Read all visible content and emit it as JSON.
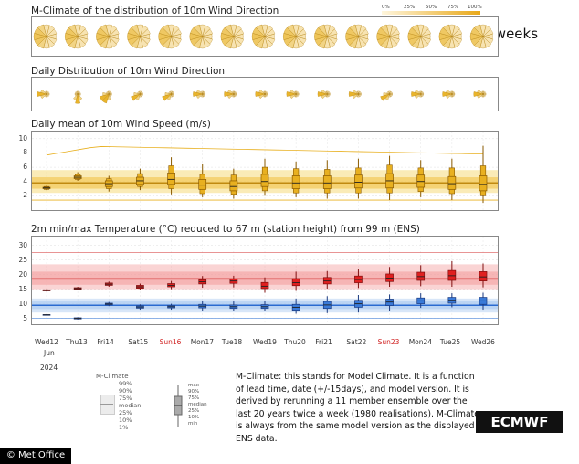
{
  "header": {
    "next_label": "Next two weeks"
  },
  "legend_scale": {
    "ticks": [
      "0%",
      "25%",
      "50%",
      "75%",
      "100%"
    ]
  },
  "panels": {
    "mclim_dir_title": "M-Climate of the distribution of 10m Wind Direction",
    "daily_dir_title": "Daily Distribution of 10m Wind Direction",
    "wind_speed_title": "Daily mean of 10m Wind Speed (m/s)",
    "temp_title": "2m min/max Temperature (°C) reduced to 67 m (station height) from 99 m (ENS)"
  },
  "x_axis": {
    "days": [
      "Wed12",
      "Thu13",
      "Fri14",
      "Sat15",
      "Sun16",
      "Mon17",
      "Tue18",
      "Wed19",
      "Thu20",
      "Fri21",
      "Sat22",
      "Sun23",
      "Mon24",
      "Tue25",
      "Wed26"
    ],
    "weekend_days": [
      "Sun16",
      "Sun23"
    ],
    "month": "Jun",
    "year": "2024"
  },
  "legend_left": {
    "title": "M-Climate",
    "items": [
      "99%",
      "90%",
      "75%",
      "median",
      "25%",
      "10%",
      "1%"
    ]
  },
  "legend_right": {
    "items": [
      "max",
      "90%",
      "75%",
      "median",
      "25%",
      "10%",
      "min"
    ]
  },
  "description": "M-Climate: this stands for Model Climate. It is a function of lead time, date (+/-15days), and model version. It is derived by rerunning a 11 member ensemble over the last 20 years twice a week (1980 realisations). M-Climate is always from the same model version as the displayed ENS data.",
  "branding": {
    "ecmwf": "ECMWF",
    "metoffice": "© Met Office"
  },
  "colors": {
    "wind": "#e8b020",
    "wind_dark": "#8a5a00",
    "tmax": "#e02020",
    "tmin": "#3a7ad8",
    "tmax_band": "#f4a0a0",
    "tmin_band": "#a8c8f0"
  },
  "chart_data": [
    {
      "type": "box",
      "title": "Daily mean of 10m Wind Speed (m/s)",
      "ylim": [
        0,
        11
      ],
      "yticks": [
        2,
        4,
        6,
        8,
        10
      ],
      "categories": [
        "Wed12",
        "Thu13",
        "Fri14",
        "Sat15",
        "Sun16",
        "Mon17",
        "Tue18",
        "Wed19",
        "Thu20",
        "Fri21",
        "Sat22",
        "Sun23",
        "Mon24",
        "Tue25",
        "Wed26"
      ],
      "mclimate": {
        "p99": 8.0,
        "p90": 5.6,
        "p75": 4.6,
        "median": 3.8,
        "p25": 3.0,
        "p10": 2.4,
        "p1": 1.4
      },
      "series": [
        {
          "min": 2.8,
          "p10": 2.9,
          "p25": 3.0,
          "median": 3.1,
          "p75": 3.2,
          "p90": 3.3,
          "max": 3.4
        },
        {
          "min": 4.1,
          "p10": 4.3,
          "p25": 4.4,
          "median": 4.6,
          "p75": 4.8,
          "p90": 5.0,
          "max": 5.3
        },
        {
          "min": 2.6,
          "p10": 3.0,
          "p25": 3.3,
          "median": 3.7,
          "p75": 4.1,
          "p90": 4.4,
          "max": 4.8
        },
        {
          "min": 2.8,
          "p10": 3.3,
          "p25": 3.6,
          "median": 4.1,
          "p75": 4.6,
          "p90": 5.1,
          "max": 5.8
        },
        {
          "min": 2.2,
          "p10": 3.0,
          "p25": 3.6,
          "median": 4.3,
          "p75": 5.2,
          "p90": 6.2,
          "max": 7.4
        },
        {
          "min": 1.8,
          "p10": 2.3,
          "p25": 2.9,
          "median": 3.5,
          "p75": 4.3,
          "p90": 5.0,
          "max": 6.4
        },
        {
          "min": 1.6,
          "p10": 2.2,
          "p25": 2.7,
          "median": 3.3,
          "p75": 4.1,
          "p90": 4.9,
          "max": 5.8
        },
        {
          "min": 2.0,
          "p10": 2.7,
          "p25": 3.3,
          "median": 4.0,
          "p75": 5.0,
          "p90": 6.0,
          "max": 7.2
        },
        {
          "min": 1.8,
          "p10": 2.4,
          "p25": 3.0,
          "median": 3.8,
          "p75": 4.8,
          "p90": 5.8,
          "max": 6.8
        },
        {
          "min": 1.6,
          "p10": 2.4,
          "p25": 3.0,
          "median": 3.8,
          "p75": 4.8,
          "p90": 5.7,
          "max": 7.0
        },
        {
          "min": 1.6,
          "p10": 2.4,
          "p25": 3.1,
          "median": 3.9,
          "p75": 4.9,
          "p90": 5.9,
          "max": 7.2
        },
        {
          "min": 1.4,
          "p10": 2.4,
          "p25": 3.1,
          "median": 4.1,
          "p75": 5.1,
          "p90": 6.3,
          "max": 7.6
        },
        {
          "min": 1.8,
          "p10": 2.6,
          "p25": 3.2,
          "median": 4.0,
          "p75": 4.9,
          "p90": 5.9,
          "max": 7.0
        },
        {
          "min": 1.4,
          "p10": 2.3,
          "p25": 2.9,
          "median": 3.7,
          "p75": 4.7,
          "p90": 5.9,
          "max": 7.2
        },
        {
          "min": 1.0,
          "p10": 2.0,
          "p25": 2.7,
          "median": 3.6,
          "p75": 4.8,
          "p90": 6.2,
          "max": 9.0
        }
      ]
    },
    {
      "type": "box",
      "title": "2m min/max Temperature (°C) reduced to 67 m (station height) from 99 m (ENS)",
      "ylim": [
        3,
        33
      ],
      "yticks": [
        5,
        10,
        15,
        20,
        25,
        30
      ],
      "categories": [
        "Wed12",
        "Thu13",
        "Fri14",
        "Sat15",
        "Sun16",
        "Mon17",
        "Tue18",
        "Wed19",
        "Thu20",
        "Fri21",
        "Sat22",
        "Sun23",
        "Mon24",
        "Tue25",
        "Wed26"
      ],
      "mclimate_max": {
        "p99": 27.5,
        "p90": 23.5,
        "p75": 21.0,
        "median": 18.5,
        "p25": 16.5,
        "p10": 15.0,
        "p1": 13.0
      },
      "mclimate_min": {
        "p99": 13.5,
        "p90": 11.8,
        "p75": 10.8,
        "median": 9.5,
        "p25": 8.2,
        "p10": 7.0,
        "p1": 5.0
      },
      "series": [
        {
          "name": "max",
          "values": [
            {
              "min": 14.2,
              "p25": 14.4,
              "median": 14.6,
              "p75": 14.8,
              "max": 15.0
            },
            {
              "min": 14.6,
              "p25": 14.9,
              "median": 15.2,
              "p75": 15.5,
              "max": 15.8
            },
            {
              "min": 15.8,
              "p25": 16.3,
              "median": 16.7,
              "p75": 17.1,
              "max": 17.6
            },
            {
              "min": 14.6,
              "p25": 15.3,
              "median": 15.8,
              "p75": 16.3,
              "max": 16.9
            },
            {
              "min": 15.0,
              "p25": 15.8,
              "median": 16.3,
              "p75": 16.9,
              "max": 17.8
            },
            {
              "min": 15.5,
              "p25": 16.8,
              "median": 17.5,
              "p75": 18.2,
              "max": 19.5
            },
            {
              "min": 15.6,
              "p25": 17.0,
              "median": 17.8,
              "p75": 18.5,
              "max": 19.6
            },
            {
              "min": 13.8,
              "p25": 15.2,
              "median": 16.0,
              "p75": 17.3,
              "max": 19.0
            },
            {
              "min": 14.4,
              "p25": 16.2,
              "median": 17.2,
              "p75": 18.6,
              "max": 21.0
            },
            {
              "min": 15.2,
              "p25": 16.8,
              "median": 17.8,
              "p75": 19.0,
              "max": 21.2
            },
            {
              "min": 15.4,
              "p25": 17.2,
              "median": 18.3,
              "p75": 19.5,
              "max": 22.0
            },
            {
              "min": 15.8,
              "p25": 17.6,
              "median": 18.8,
              "p75": 20.2,
              "max": 22.6
            },
            {
              "min": 16.0,
              "p25": 18.0,
              "median": 19.3,
              "p75": 20.8,
              "max": 23.2
            },
            {
              "min": 15.8,
              "p25": 18.0,
              "median": 19.6,
              "p75": 21.4,
              "max": 24.6
            },
            {
              "min": 15.6,
              "p25": 17.8,
              "median": 19.2,
              "p75": 21.0,
              "max": 23.8
            }
          ]
        },
        {
          "name": "min",
          "values": [
            {
              "min": 6.0,
              "p25": 6.1,
              "median": 6.2,
              "p75": 6.3,
              "max": 6.4
            },
            {
              "min": 4.6,
              "p25": 4.8,
              "median": 5.0,
              "p75": 5.2,
              "max": 5.4
            },
            {
              "min": 9.2,
              "p25": 9.6,
              "median": 9.9,
              "p75": 10.2,
              "max": 10.6
            },
            {
              "min": 8.0,
              "p25": 8.5,
              "median": 8.9,
              "p75": 9.3,
              "max": 9.8
            },
            {
              "min": 8.0,
              "p25": 8.6,
              "median": 9.0,
              "p75": 9.4,
              "max": 10.0
            },
            {
              "min": 7.6,
              "p25": 8.6,
              "median": 9.2,
              "p75": 9.8,
              "max": 11.0
            },
            {
              "min": 7.4,
              "p25": 8.4,
              "median": 9.0,
              "p75": 9.6,
              "max": 10.8
            },
            {
              "min": 7.4,
              "p25": 8.4,
              "median": 9.0,
              "p75": 9.7,
              "max": 11.0
            },
            {
              "min": 6.6,
              "p25": 7.8,
              "median": 8.8,
              "p75": 9.8,
              "max": 11.8
            },
            {
              "min": 6.8,
              "p25": 8.4,
              "median": 9.6,
              "p75": 10.8,
              "max": 12.6
            },
            {
              "min": 7.0,
              "p25": 8.8,
              "median": 10.0,
              "p75": 11.2,
              "max": 13.0
            },
            {
              "min": 7.6,
              "p25": 9.4,
              "median": 10.6,
              "p75": 11.6,
              "max": 13.2
            },
            {
              "min": 8.6,
              "p25": 10.0,
              "median": 11.0,
              "p75": 12.0,
              "max": 13.6
            },
            {
              "min": 8.8,
              "p25": 10.2,
              "median": 11.2,
              "p75": 12.2,
              "max": 13.6
            },
            {
              "min": 8.0,
              "p25": 9.8,
              "median": 11.0,
              "p75": 12.2,
              "max": 13.8
            }
          ]
        }
      ]
    },
    {
      "type": "rose",
      "title": "Daily Distribution of 10m Wind Direction",
      "categories": [
        "Wed12",
        "Thu13",
        "Fri14",
        "Sat15",
        "Sun16",
        "Mon17",
        "Tue18",
        "Wed19",
        "Thu20",
        "Fri21",
        "Sat22",
        "Sun23",
        "Mon24",
        "Tue25",
        "Wed26"
      ],
      "dominant_direction_deg": [
        270,
        180,
        225,
        250,
        250,
        270,
        280,
        270,
        270,
        270,
        260,
        250,
        270,
        270,
        270
      ]
    }
  ]
}
